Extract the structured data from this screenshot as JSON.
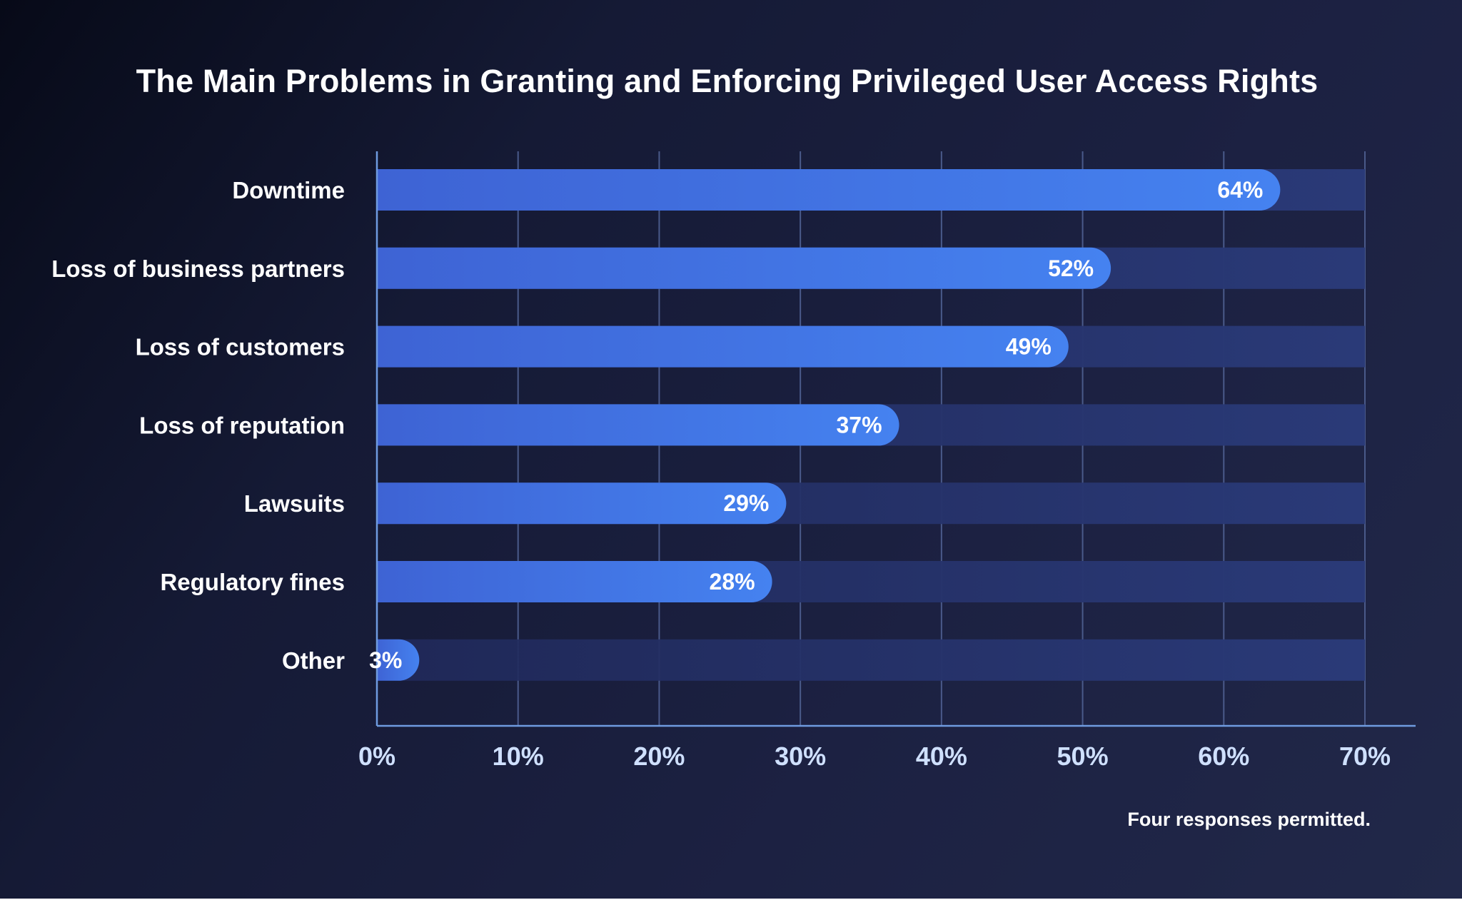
{
  "chart_data": {
    "type": "bar",
    "orientation": "horizontal",
    "title": "The Main Problems in Granting and Enforcing Privileged User Access Rights",
    "categories": [
      "Downtime",
      "Loss of business partners",
      "Loss of customers",
      "Loss of reputation",
      "Lawsuits",
      "Regulatory fines",
      "Other"
    ],
    "values": [
      64,
      52,
      49,
      37,
      29,
      28,
      3
    ],
    "value_labels": [
      "64%",
      "52%",
      "49%",
      "37%",
      "29%",
      "28%",
      "3%"
    ],
    "xlim": [
      0,
      70
    ],
    "x_ticks": [
      0,
      10,
      20,
      30,
      40,
      50,
      60,
      70
    ],
    "x_tick_labels": [
      "0%",
      "10%",
      "20%",
      "30%",
      "40%",
      "50%",
      "60%",
      "70%"
    ],
    "grid": true,
    "footnote": "Four responses permitted."
  },
  "colors": {
    "bar_start": "#3e63d4",
    "bar_end": "#4582f0",
    "track": "#2a3a78",
    "grid": "#4a5a8a",
    "axis": "#6f9be0",
    "tick_text": "#cfe0ff"
  }
}
